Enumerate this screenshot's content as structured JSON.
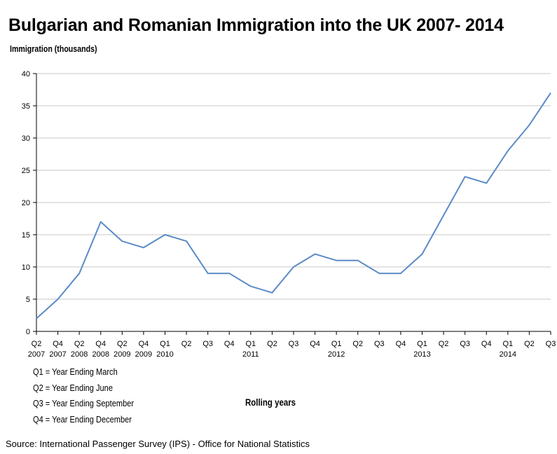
{
  "title": "Bulgarian and Romanian Immigration into the UK 2007- 2014",
  "source": "Source: International Passenger Survey (IPS) - Office for National Statistics",
  "legend_notes": [
    "Q1 = Year Ending March",
    "Q2 = Year Ending June",
    "Q3 = Year Ending September",
    "Q4 = Year Ending December"
  ],
  "chart_data": {
    "type": "line",
    "title": "Bulgarian and Romanian Immigration into the UK 2007- 2014",
    "ylabel": "Immigration (thousands)",
    "xlabel": "Rolling years",
    "ylim": [
      0,
      40
    ],
    "yticks": [
      0,
      5,
      10,
      15,
      20,
      25,
      30,
      35,
      40
    ],
    "grid": true,
    "line_color": "#5b8bc7",
    "categories": [
      "Q2 2007",
      "Q4 2007",
      "Q2 2008",
      "Q4 2008",
      "Q2 2009",
      "Q4 2009",
      "Q1 2010",
      "Q2 2010",
      "Q3 2010",
      "Q4 2010",
      "Q1 2011",
      "Q2 2011",
      "Q3 2011",
      "Q4 2011",
      "Q1 2012",
      "Q2 2012",
      "Q3 2012",
      "Q4 2012",
      "Q1 2013",
      "Q2 2013",
      "Q3 2013",
      "Q4 2013",
      "Q1 2014",
      "Q2 2014",
      "Q3 2014"
    ],
    "tick_labels": [
      {
        "q": "Q2",
        "y": "2007"
      },
      {
        "q": "Q4",
        "y": "2007"
      },
      {
        "q": "Q2",
        "y": "2008"
      },
      {
        "q": "Q4",
        "y": "2008"
      },
      {
        "q": "Q2",
        "y": "2009"
      },
      {
        "q": "Q4",
        "y": "2009"
      },
      {
        "q": "Q1",
        "y": "2010"
      },
      {
        "q": "Q2",
        "y": ""
      },
      {
        "q": "Q3",
        "y": ""
      },
      {
        "q": "Q4",
        "y": ""
      },
      {
        "q": "Q1",
        "y": "2011"
      },
      {
        "q": "Q2",
        "y": ""
      },
      {
        "q": "Q3",
        "y": ""
      },
      {
        "q": "Q4",
        "y": ""
      },
      {
        "q": "Q1",
        "y": "2012"
      },
      {
        "q": "Q2",
        "y": ""
      },
      {
        "q": "Q3",
        "y": ""
      },
      {
        "q": "Q4",
        "y": ""
      },
      {
        "q": "Q1",
        "y": "2013"
      },
      {
        "q": "Q2",
        "y": ""
      },
      {
        "q": "Q3",
        "y": ""
      },
      {
        "q": "Q4",
        "y": ""
      },
      {
        "q": "Q1",
        "y": "2014"
      },
      {
        "q": "Q2",
        "y": ""
      },
      {
        "q": "Q3",
        "y": ""
      }
    ],
    "values": [
      2,
      5,
      9,
      17,
      14,
      13,
      15,
      14,
      9,
      9,
      7,
      6,
      10,
      12,
      11,
      11,
      9,
      9,
      12,
      18,
      24,
      23,
      28,
      32,
      37
    ]
  }
}
